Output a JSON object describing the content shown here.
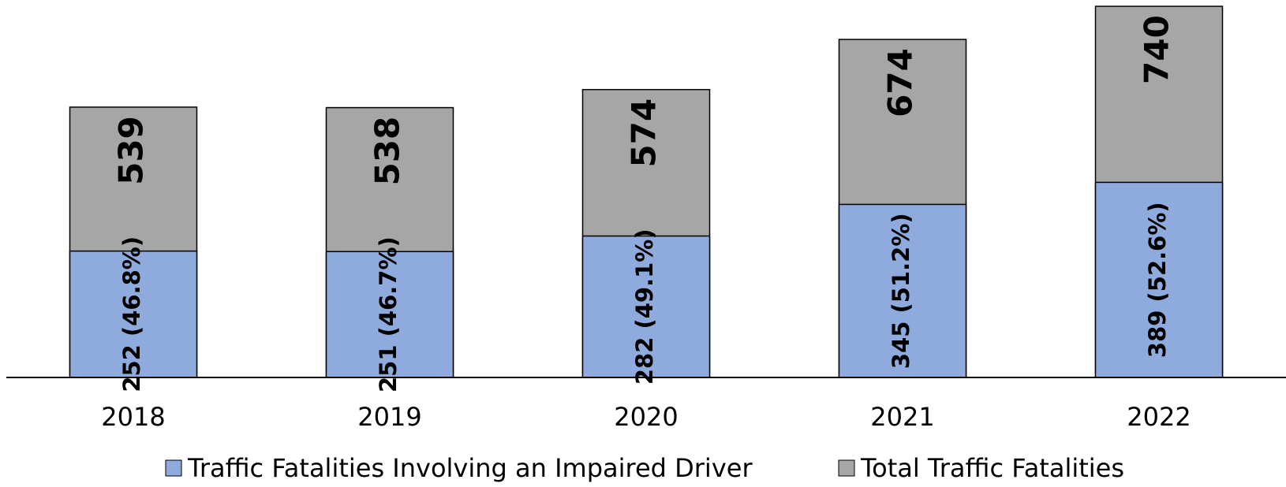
{
  "chart_data": {
    "type": "bar",
    "categories": [
      "2018",
      "2019",
      "2020",
      "2021",
      "2022"
    ],
    "series": [
      {
        "name": "Traffic Fatalities Involving an Impaired Driver",
        "color": "#8faadc",
        "values": [
          252,
          251,
          282,
          345,
          389
        ],
        "value_labels": [
          "252 (46.8%)",
          "251 (46.7%)",
          "282 (49.1%)",
          "345 (51.2%)",
          "389 (52.6%)"
        ]
      },
      {
        "name": "Total Traffic Fatalities",
        "color": "#a6a6a6",
        "values": [
          539,
          538,
          574,
          674,
          740
        ]
      }
    ],
    "ylim": [
      0,
      740
    ]
  }
}
